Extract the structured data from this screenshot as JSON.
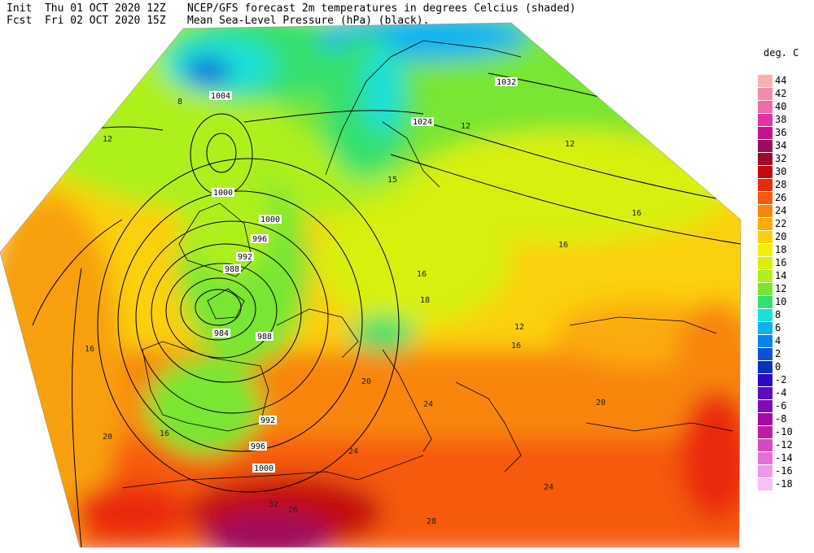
{
  "header": {
    "init_label": "Init",
    "init_value": "Thu 01 OCT 2020 12Z",
    "fcst_label": "Fcst",
    "fcst_value": "Fri 02 OCT 2020 15Z",
    "title_line1": "NCEP/GFS forecast 2m temperatures in degrees Celcius (shaded)",
    "title_line2": "Mean Sea-Level Pressure (hPa) (black)."
  },
  "legend": {
    "title": "deg. C",
    "entries": [
      {
        "label": "44",
        "color": "#f7b3b3"
      },
      {
        "label": "42",
        "color": "#f48ba8"
      },
      {
        "label": "40",
        "color": "#f06aa6"
      },
      {
        "label": "38",
        "color": "#e032a3"
      },
      {
        "label": "36",
        "color": "#c8128c"
      },
      {
        "label": "34",
        "color": "#a00a5a"
      },
      {
        "label": "32",
        "color": "#9e0a2a"
      },
      {
        "label": "30",
        "color": "#c40a0a"
      },
      {
        "label": "28",
        "color": "#ea2a0a"
      },
      {
        "label": "26",
        "color": "#f55a0a"
      },
      {
        "label": "24",
        "color": "#f8860a"
      },
      {
        "label": "22",
        "color": "#fbac0a"
      },
      {
        "label": "20",
        "color": "#fbd00a"
      },
      {
        "label": "18",
        "color": "#f6ee0a"
      },
      {
        "label": "16",
        "color": "#d8f00c"
      },
      {
        "label": "14",
        "color": "#aef01a"
      },
      {
        "label": "12",
        "color": "#78e632"
      },
      {
        "label": "10",
        "color": "#34e06e"
      },
      {
        "label": "8",
        "color": "#1ae0d6"
      },
      {
        "label": "6",
        "color": "#0ab4f0"
      },
      {
        "label": "4",
        "color": "#0a82ee"
      },
      {
        "label": "2",
        "color": "#0a52dc"
      },
      {
        "label": "0",
        "color": "#0a32b8"
      },
      {
        "label": "-2",
        "color": "#2a0ac8"
      },
      {
        "label": "-4",
        "color": "#5a0ac4"
      },
      {
        "label": "-6",
        "color": "#820ab4"
      },
      {
        "label": "-8",
        "color": "#a40aa4"
      },
      {
        "label": "-10",
        "color": "#c41aa8"
      },
      {
        "label": "-12",
        "color": "#d848c4"
      },
      {
        "label": "-14",
        "color": "#e470d8"
      },
      {
        "label": "-16",
        "color": "#ee98e8"
      },
      {
        "label": "-18",
        "color": "#f8c0f4"
      }
    ]
  },
  "isobar_labels": [
    "1004",
    "1000",
    "996",
    "992",
    "988",
    "984",
    "988",
    "992",
    "996",
    "1000",
    "1032",
    "1024",
    "1000"
  ],
  "temp_labels": [
    "8",
    "12",
    "12",
    "12",
    "12",
    "15",
    "16",
    "16",
    "16",
    "16",
    "16",
    "16",
    "18",
    "20",
    "20",
    "20",
    "24",
    "24",
    "24",
    "26",
    "28",
    "32"
  ]
}
